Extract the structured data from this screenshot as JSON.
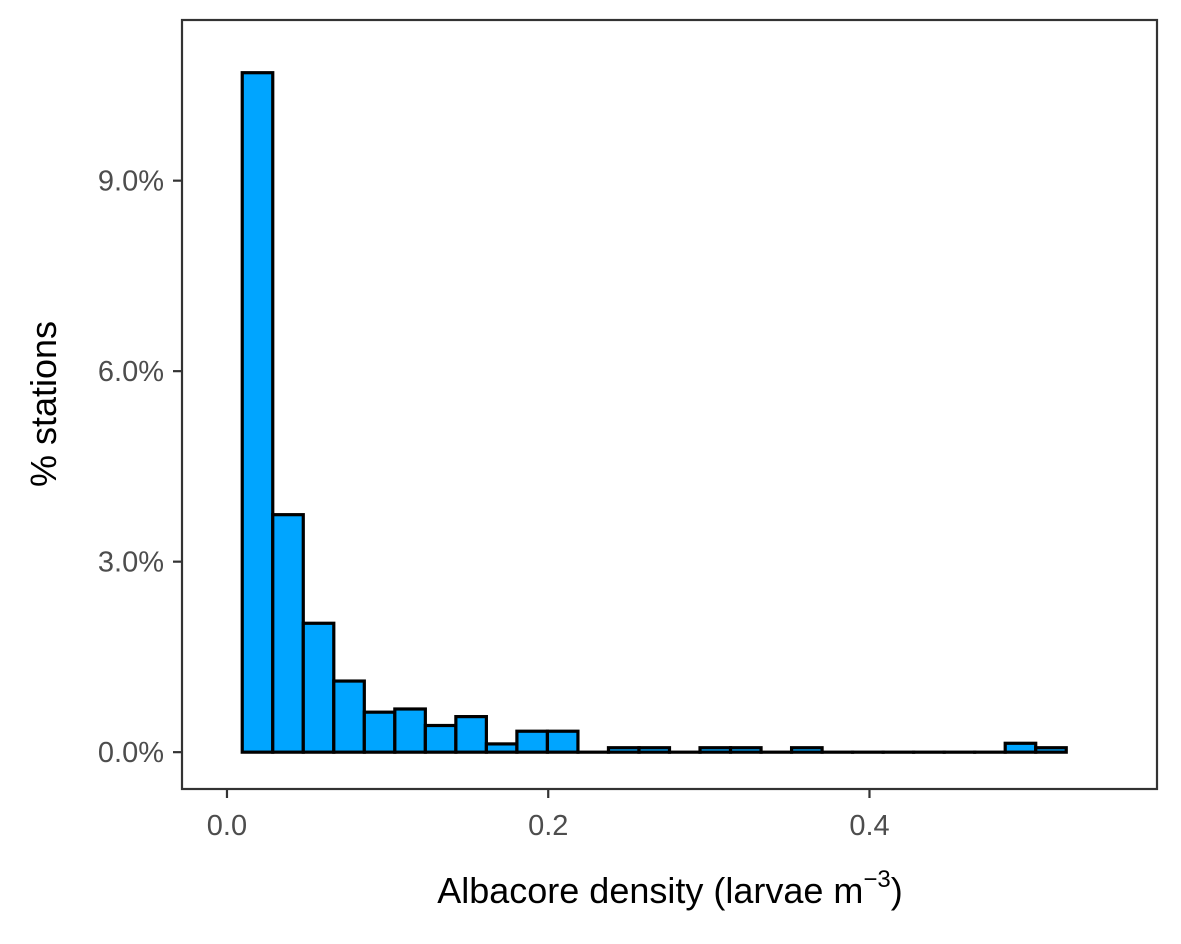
{
  "chart_data": {
    "type": "bar",
    "title": "",
    "xlabel": "Albacore density (larvae m",
    "xlabel_superscript": "−3",
    "xlabel_suffix": ")",
    "ylabel": "% stations",
    "xlim": [
      -0.028,
      0.579
    ],
    "ylim": [
      -0.0058,
      0.1153
    ],
    "x_ticks": [
      {
        "value": 0.0,
        "label": "0.0"
      },
      {
        "value": 0.2,
        "label": "0.2"
      },
      {
        "value": 0.4,
        "label": "0.4"
      }
    ],
    "y_ticks": [
      {
        "value": 0.0,
        "label": "0.0%"
      },
      {
        "value": 0.03,
        "label": "3.0%"
      },
      {
        "value": 0.06,
        "label": "6.0%"
      },
      {
        "value": 0.09,
        "label": "9.0%"
      }
    ],
    "bin_start": 0.0095,
    "bin_width": 0.019,
    "values": [
      0.107,
      0.0374,
      0.0203,
      0.0112,
      0.0063,
      0.0068,
      0.0042,
      0.0056,
      0.0013,
      0.0033,
      0.0033,
      0,
      0.0007,
      0.0007,
      0,
      0.0007,
      0.0007,
      0,
      0.0007,
      0,
      0,
      0,
      0,
      0,
      0,
      0.0014,
      0.0007
    ],
    "fill_color": "#00a5ff",
    "stroke_color": "#000000",
    "grid": false,
    "legend": "none"
  }
}
